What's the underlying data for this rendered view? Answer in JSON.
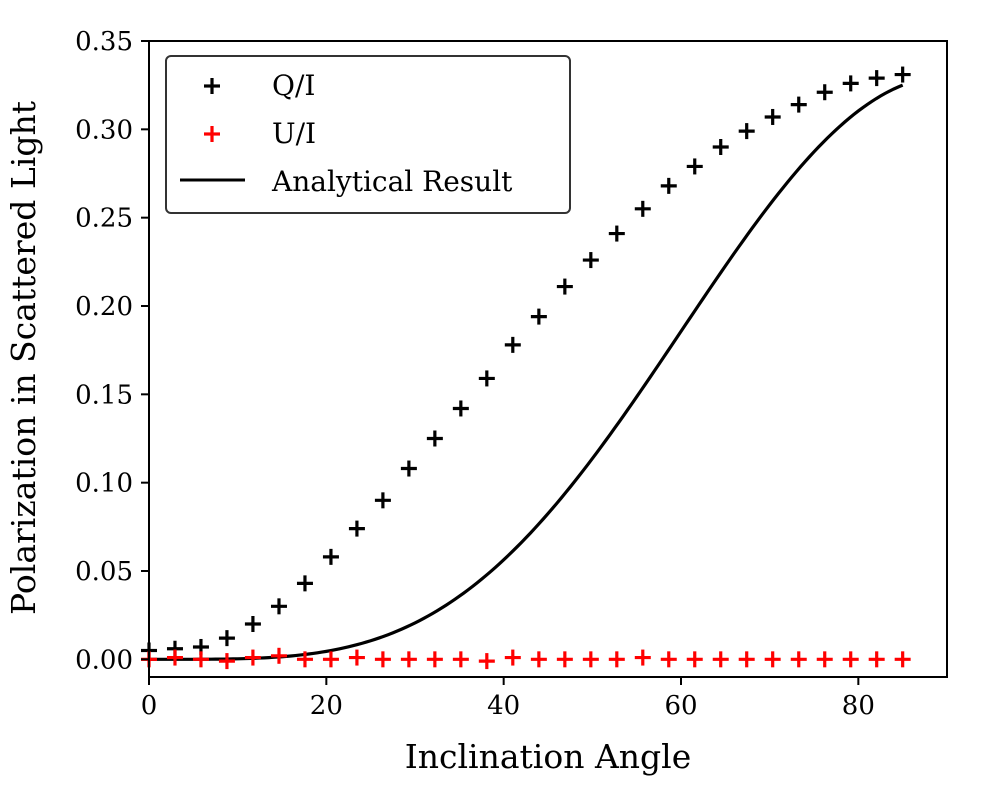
{
  "chart_data": {
    "type": "scatter",
    "title": "",
    "xlabel": "Inclination Angle",
    "ylabel": "Polarization in Scattered Light",
    "xlim": [
      0,
      90
    ],
    "ylim": [
      -0.01,
      0.35
    ],
    "xticks": [
      0,
      20,
      40,
      60,
      80
    ],
    "xtick_labels": [
      "0",
      "20",
      "40",
      "60",
      "80"
    ],
    "yticks": [
      0.0,
      0.05,
      0.1,
      0.15,
      0.2,
      0.25,
      0.3,
      0.35
    ],
    "ytick_labels": [
      "0.00",
      "0.05",
      "0.10",
      "0.15",
      "0.20",
      "0.25",
      "0.30",
      "0.35"
    ],
    "grid": false,
    "legend_position": "top-left",
    "series": [
      {
        "name": "Q/I",
        "kind": "scatter",
        "marker": "plus",
        "color": "#000000",
        "x": [
          0,
          2.93,
          5.86,
          8.79,
          11.72,
          14.66,
          17.59,
          20.52,
          23.45,
          26.38,
          29.31,
          32.24,
          35.17,
          38.1,
          41.03,
          43.97,
          46.9,
          49.83,
          52.76,
          55.69,
          58.62,
          61.55,
          64.48,
          67.41,
          70.34,
          73.28,
          76.21,
          79.14,
          82.07,
          85.0
        ],
        "y": [
          0.005,
          0.006,
          0.007,
          0.012,
          0.02,
          0.03,
          0.043,
          0.058,
          0.074,
          0.09,
          0.108,
          0.125,
          0.142,
          0.159,
          0.178,
          0.194,
          0.211,
          0.226,
          0.241,
          0.255,
          0.268,
          0.279,
          0.29,
          0.299,
          0.307,
          0.314,
          0.321,
          0.326,
          0.329,
          0.331
        ]
      },
      {
        "name": "U/I",
        "kind": "scatter",
        "marker": "plus",
        "color": "#ff0000",
        "x": [
          0,
          2.93,
          5.86,
          8.79,
          11.72,
          14.66,
          17.59,
          20.52,
          23.45,
          26.38,
          29.31,
          32.24,
          35.17,
          38.1,
          41.03,
          43.97,
          46.9,
          49.83,
          52.76,
          55.69,
          58.62,
          61.55,
          64.48,
          67.41,
          70.34,
          73.28,
          76.21,
          79.14,
          82.07,
          85.0
        ],
        "y": [
          0.0,
          0.001,
          0.0,
          -0.001,
          0.001,
          0.002,
          0.0,
          0.0,
          0.001,
          0.0,
          0.0,
          0.0,
          0.0,
          -0.001,
          0.001,
          0.0,
          0.0,
          0.0,
          0.0,
          0.001,
          0.0,
          0.0,
          0.0,
          0.0,
          0.0,
          0.0,
          0.0,
          0.0,
          0.0,
          0.0
        ]
      },
      {
        "name": "Analytical Result",
        "kind": "line",
        "color": "#000000",
        "formula": "0.33 * sin(x)^4",
        "x": [
          0,
          5,
          10,
          15,
          20,
          25,
          30,
          35,
          40,
          45,
          50,
          55,
          60,
          65,
          70,
          75,
          80,
          85
        ],
        "y": [
          0.0,
          0.0,
          0.0003,
          0.0015,
          0.0045,
          0.0105,
          0.0206,
          0.0357,
          0.0563,
          0.0825,
          0.1136,
          0.1484,
          0.1856,
          0.2227,
          0.2573,
          0.2869,
          0.309,
          0.3252
        ]
      }
    ]
  }
}
